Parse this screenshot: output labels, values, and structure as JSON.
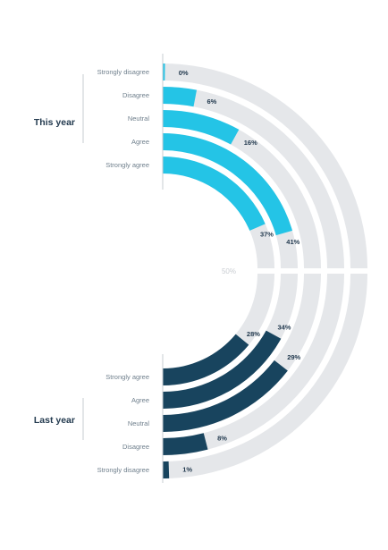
{
  "chart_data": {
    "type": "radial-bar",
    "max_label": "50%",
    "colors": {
      "track": "#e5e7ea",
      "this_year": "#24c4e6",
      "last_year": "#18445e",
      "text": "#233a4f",
      "label": "#6f7f8c"
    },
    "groups": [
      {
        "name": "This year",
        "series": [
          {
            "category": "Strongly disagree",
            "value": 0,
            "label": "0%"
          },
          {
            "category": "Disagree",
            "value": 6,
            "label": "6%"
          },
          {
            "category": "Neutral",
            "value": 16,
            "label": "16%"
          },
          {
            "category": "Agree",
            "value": 41,
            "label": "41%"
          },
          {
            "category": "Strongly agree",
            "value": 37,
            "label": "37%"
          }
        ]
      },
      {
        "name": "Last year",
        "series": [
          {
            "category": "Strongly agree",
            "value": 28,
            "label": "28%"
          },
          {
            "category": "Agree",
            "value": 34,
            "label": "34%"
          },
          {
            "category": "Neutral",
            "value": 29,
            "label": "29%"
          },
          {
            "category": "Disagree",
            "value": 8,
            "label": "8%"
          },
          {
            "category": "Strongly disagree",
            "value": 1,
            "label": "1%"
          }
        ]
      }
    ]
  }
}
